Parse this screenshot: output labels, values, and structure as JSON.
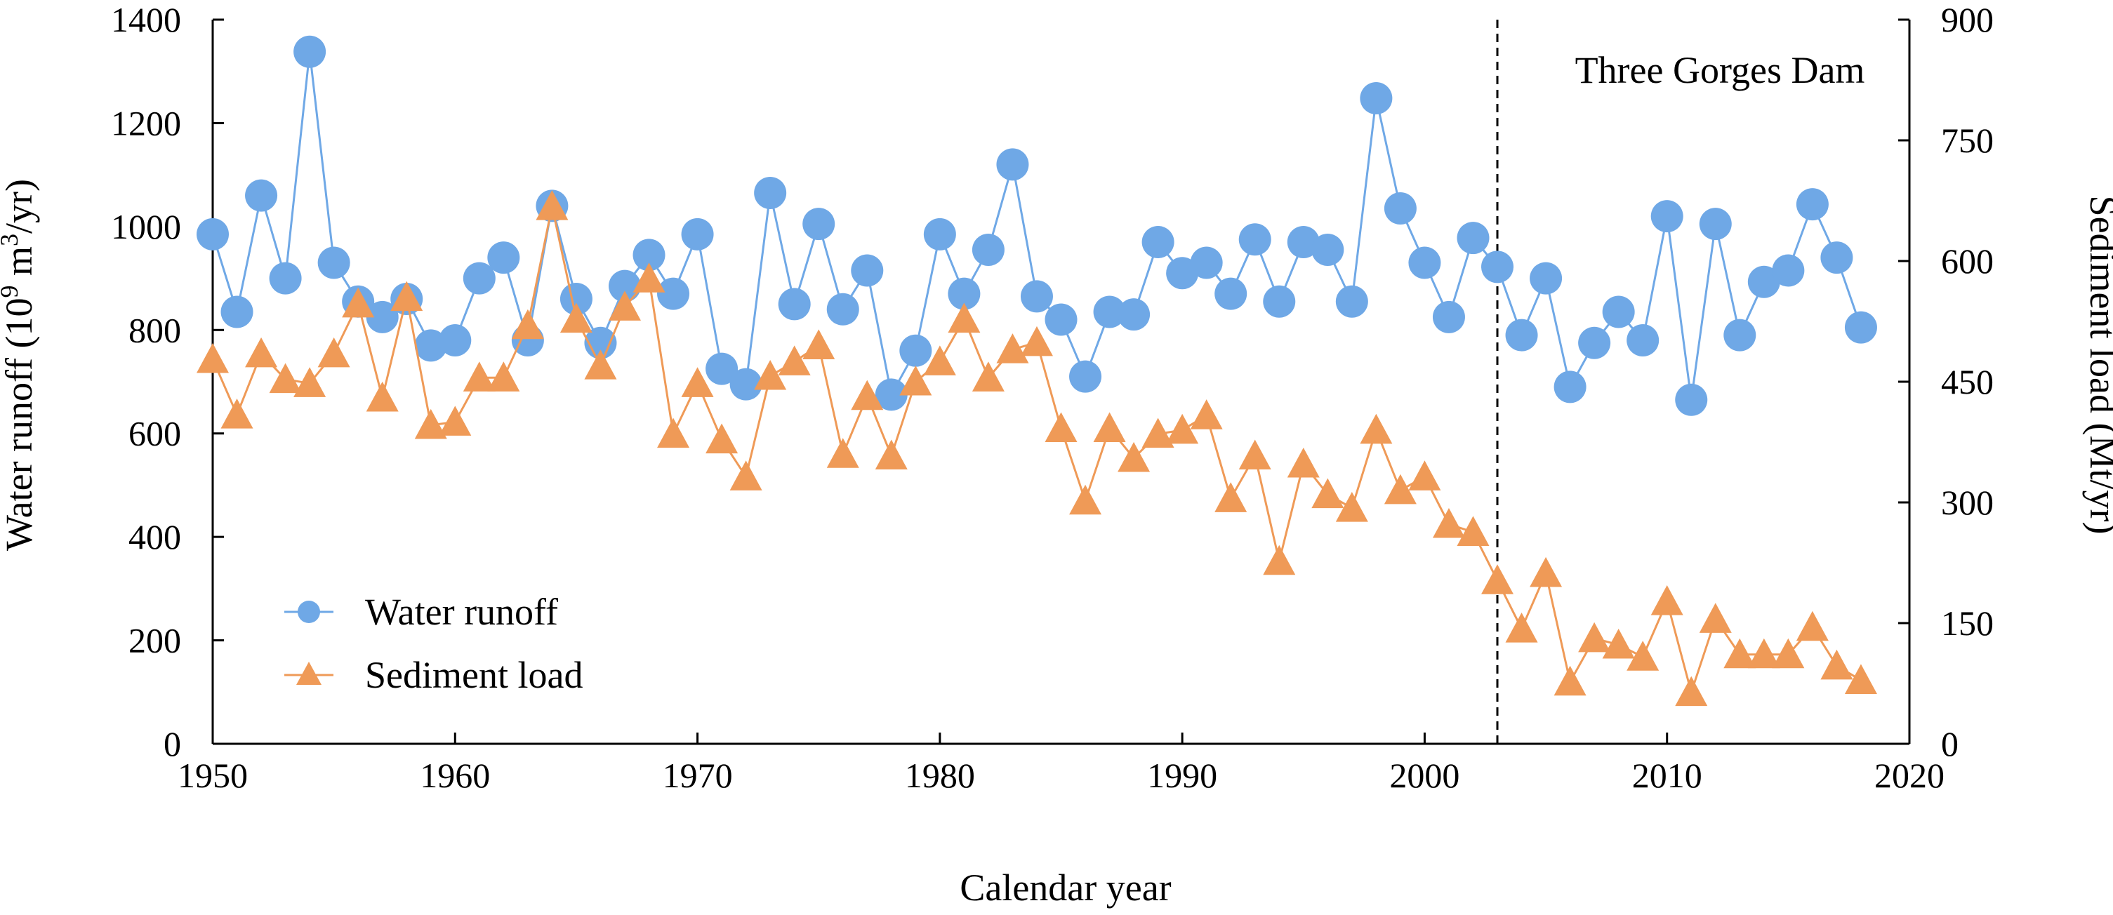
{
  "chart_data": {
    "type": "line",
    "xlabel": "Calendar year",
    "ylabel_left": "Water runoff (10",
    "ylabel_left_sup": "9",
    "ylabel_left_mid": " m",
    "ylabel_left_sup2": "3",
    "ylabel_left_end": "/yr)",
    "ylabel_right": "Sediment load (Mt/yr)",
    "xlim": [
      1950,
      2020
    ],
    "ylim_left": [
      0,
      1400
    ],
    "ylim_right": [
      0,
      900
    ],
    "x_ticks": [
      1950,
      1960,
      1970,
      1980,
      1990,
      2000,
      2010,
      2020
    ],
    "y_left_ticks": [
      0,
      200,
      400,
      600,
      800,
      1000,
      1200,
      1400
    ],
    "y_right_ticks": [
      0,
      150,
      300,
      450,
      600,
      750,
      900
    ],
    "grid": false,
    "legend_position": "bottom-left",
    "annotation": {
      "text": "Three Gorges Dam",
      "x": 2003
    },
    "series": [
      {
        "name": "Water runoff",
        "axis": "left",
        "marker": "circle",
        "color": "#6fa8e6",
        "x": [
          1950,
          1951,
          1952,
          1953,
          1954,
          1955,
          1956,
          1957,
          1958,
          1959,
          1960,
          1961,
          1962,
          1963,
          1964,
          1965,
          1966,
          1967,
          1968,
          1969,
          1970,
          1971,
          1972,
          1973,
          1974,
          1975,
          1976,
          1977,
          1978,
          1979,
          1980,
          1981,
          1982,
          1983,
          1984,
          1985,
          1986,
          1987,
          1988,
          1989,
          1990,
          1991,
          1992,
          1993,
          1994,
          1995,
          1996,
          1997,
          1998,
          1999,
          2000,
          2001,
          2002,
          2003,
          2004,
          2005,
          2006,
          2007,
          2008,
          2009,
          2010,
          2011,
          2012,
          2013,
          2014,
          2015,
          2016,
          2017,
          2018
        ],
        "values": [
          985,
          835,
          1060,
          900,
          1338,
          930,
          855,
          825,
          860,
          770,
          780,
          900,
          940,
          780,
          1040,
          860,
          775,
          885,
          945,
          870,
          985,
          725,
          695,
          1065,
          850,
          1005,
          840,
          915,
          675,
          760,
          985,
          870,
          955,
          1120,
          865,
          820,
          710,
          835,
          830,
          970,
          910,
          930,
          870,
          975,
          855,
          970,
          955,
          855,
          1248,
          1035,
          930,
          825,
          978,
          922,
          790,
          900,
          690,
          775,
          835,
          780,
          1020,
          665,
          1005,
          790,
          893,
          915,
          1043,
          940,
          805
        ]
      },
      {
        "name": "Sediment load",
        "axis": "right",
        "marker": "triangle",
        "color": "#ef9a57",
        "x": [
          1950,
          1951,
          1952,
          1953,
          1954,
          1955,
          1956,
          1957,
          1958,
          1959,
          1960,
          1961,
          1962,
          1963,
          1964,
          1965,
          1966,
          1967,
          1968,
          1969,
          1970,
          1971,
          1972,
          1973,
          1974,
          1975,
          1976,
          1977,
          1978,
          1979,
          1980,
          1981,
          1982,
          1983,
          1984,
          1985,
          1986,
          1987,
          1988,
          1989,
          1990,
          1991,
          1992,
          1993,
          1994,
          1995,
          1996,
          1997,
          1998,
          1999,
          2000,
          2001,
          2002,
          2003,
          2004,
          2005,
          2006,
          2007,
          2008,
          2009,
          2010,
          2011,
          2012,
          2013,
          2014,
          2015,
          2016,
          2017,
          2018
        ],
        "values": [
          478,
          409,
          485,
          453,
          448,
          485,
          547,
          430,
          555,
          396,
          400,
          455,
          455,
          520,
          668,
          528,
          470,
          543,
          578,
          385,
          448,
          378,
          332,
          457,
          475,
          495,
          360,
          432,
          358,
          450,
          475,
          528,
          455,
          490,
          499,
          392,
          302,
          392,
          355,
          385,
          390,
          408,
          305,
          358,
          227,
          348,
          310,
          293,
          390,
          315,
          332,
          273,
          263,
          203,
          143,
          212,
          77,
          131,
          123,
          108,
          177,
          64,
          155,
          111,
          111,
          111,
          145,
          97,
          79
        ]
      }
    ]
  }
}
